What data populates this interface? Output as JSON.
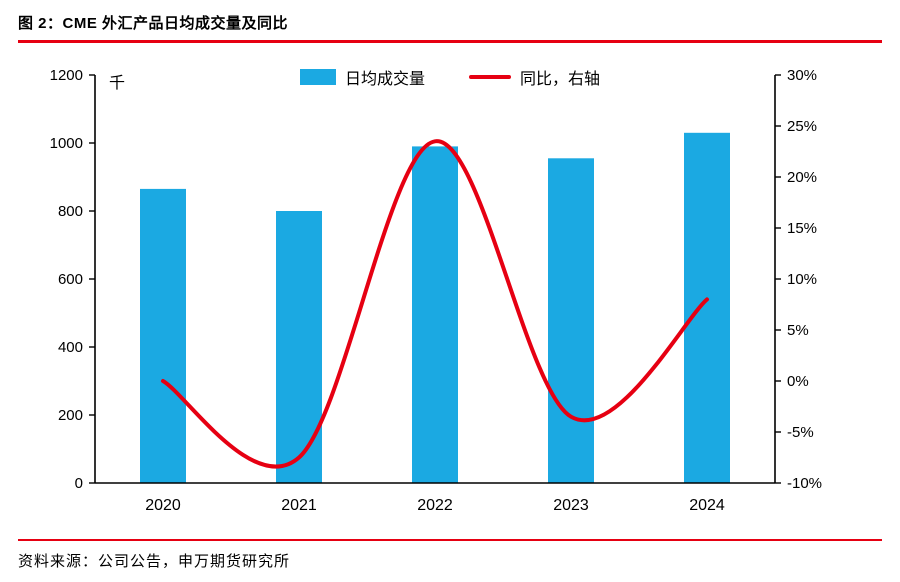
{
  "header": {
    "title": "图 2：CME 外汇产品日均成交量及同比"
  },
  "footer": {
    "source": "资料来源：公司公告，申万期货研究所"
  },
  "colors": {
    "bar_blue": "#1BA9E2",
    "line_red": "#E60012",
    "rule_red": "#E60012",
    "axis_black": "#000000"
  },
  "chart_data": {
    "type": "bar+line",
    "title": "CME 外汇产品日均成交量及同比",
    "categories": [
      "2020",
      "2021",
      "2022",
      "2023",
      "2024"
    ],
    "series": [
      {
        "name": "日均成交量",
        "type": "bar",
        "axis": "left",
        "values": [
          865,
          800,
          990,
          955,
          1030
        ]
      },
      {
        "name": "同比，右轴",
        "type": "line",
        "axis": "right",
        "values": [
          0,
          -7.5,
          23.5,
          -3.5,
          8
        ]
      }
    ],
    "left_axis": {
      "unit_label": "千",
      "min": 0,
      "max": 1200,
      "step": 200,
      "tick_labels": [
        "0",
        "200",
        "400",
        "600",
        "800",
        "1000",
        "1200"
      ]
    },
    "right_axis": {
      "min": -10,
      "max": 30,
      "step": 5,
      "tick_labels": [
        "-10%",
        "-5%",
        "0%",
        "5%",
        "10%",
        "15%",
        "20%",
        "25%",
        "30%"
      ]
    },
    "legend_position": "top",
    "grid": false,
    "line_smoothing": true
  }
}
